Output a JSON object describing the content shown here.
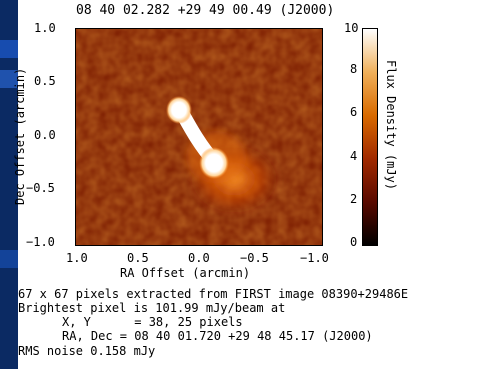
{
  "image": {
    "title": "08 40 02.282 +29 49 00.49 (J2000)",
    "x_axis": {
      "label": "RA Offset (arcmin)",
      "ticks": [
        "1.0",
        "0.5",
        "0.0",
        "−0.5",
        "−1.0"
      ]
    },
    "y_axis": {
      "label": "Dec Offset (arcmin)",
      "ticks": [
        "1.0",
        "0.5",
        "0.0",
        "−0.5",
        "−1.0"
      ]
    },
    "colorbar": {
      "label": "Flux Density (mJy)",
      "ticks": [
        "10",
        "8",
        "6",
        "4",
        "2",
        "0"
      ],
      "colors": [
        "#000000",
        "#5a0a00",
        "#a12a00",
        "#d86a00",
        "#f0b05a",
        "#ffffff"
      ]
    }
  },
  "info": {
    "line1": "67 x 67 pixels extracted from FIRST image 08390+29486E",
    "line2": "Brightest pixel is 101.99 mJy/beam at",
    "line3": "X, Y      = 38, 25 pixels",
    "line4": "RA, Dec = 08 40 01.720 +29 48 45.17 (J2000)",
    "line5": "RMS noise 0.158 mJy"
  }
}
